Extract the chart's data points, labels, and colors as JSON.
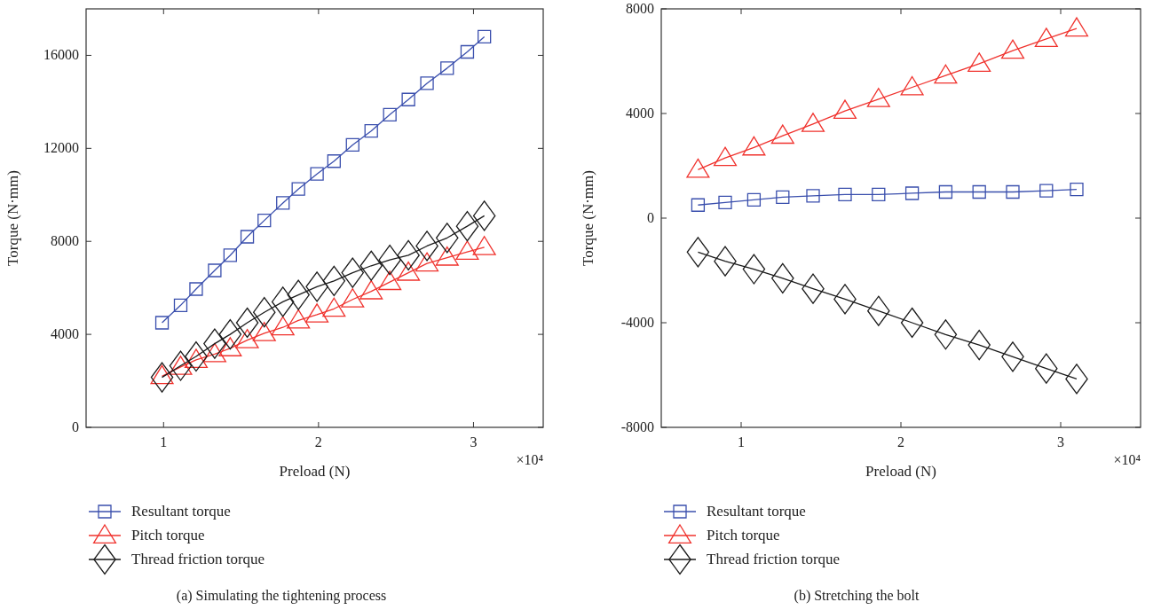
{
  "chart_data": [
    {
      "type": "line",
      "subtitle": "(a)  Simulating the tightening process",
      "xlabel": "Preload (N)",
      "ylabel": "Torque (N·mm)",
      "annotations": [
        "×10⁴"
      ],
      "xlim": [
        0.5,
        3.45
      ],
      "xticks": [
        1,
        2,
        3
      ],
      "ylim": [
        0,
        18000
      ],
      "yticks": [
        0,
        4000,
        8000,
        12000,
        16000
      ],
      "grid": false,
      "legend": "bottom",
      "line_style": "solid",
      "x": [
        0.99,
        1.11,
        1.21,
        1.33,
        1.43,
        1.54,
        1.65,
        1.77,
        1.87,
        1.99,
        2.1,
        2.22,
        2.34,
        2.46,
        2.58,
        2.7,
        2.83,
        2.96,
        3.07
      ],
      "series": [
        {
          "name": "Resultant torque",
          "color": "#3a4fad",
          "marker": "square",
          "values": [
            4500,
            5250,
            5950,
            6750,
            7400,
            8200,
            8900,
            9650,
            10250,
            10900,
            11450,
            12150,
            12750,
            13450,
            14100,
            14800,
            15450,
            16150,
            16800
          ]
        },
        {
          "name": "Pitch torque",
          "color": "#f0322d",
          "marker": "triangle",
          "values": [
            2200,
            2600,
            2900,
            3150,
            3400,
            3750,
            4050,
            4300,
            4600,
            4850,
            5100,
            5500,
            5850,
            6250,
            6650,
            7050,
            7300,
            7550,
            7750
          ]
        },
        {
          "name": "Thread friction torque",
          "color": "#1a1a1a",
          "marker": "diamond",
          "values": [
            2150,
            2650,
            3050,
            3600,
            4000,
            4500,
            4950,
            5400,
            5700,
            6050,
            6300,
            6650,
            6950,
            7200,
            7400,
            7800,
            8150,
            8650,
            9100
          ]
        }
      ]
    },
    {
      "type": "line",
      "subtitle": "(b)  Stretching the bolt",
      "xlabel": "Preload (N)",
      "ylabel": "Torque (N·mm)",
      "annotations": [
        "×10⁴"
      ],
      "xlim": [
        0.5,
        3.5
      ],
      "xticks": [
        1,
        2,
        3
      ],
      "ylim": [
        -8000,
        8000
      ],
      "yticks": [
        -8000,
        -4000,
        0,
        4000,
        8000
      ],
      "grid": false,
      "legend": "bottom",
      "line_style": "solid",
      "x": [
        0.73,
        0.9,
        1.08,
        1.26,
        1.45,
        1.65,
        1.86,
        2.07,
        2.28,
        2.49,
        2.7,
        2.91,
        3.1
      ],
      "series": [
        {
          "name": "Resultant torque",
          "color": "#3a4fad",
          "marker": "square",
          "values": [
            500,
            600,
            700,
            800,
            850,
            900,
            900,
            950,
            1000,
            1000,
            1000,
            1050,
            1100
          ]
        },
        {
          "name": "Pitch torque",
          "color": "#f0322d",
          "marker": "triangle",
          "values": [
            1850,
            2300,
            2700,
            3150,
            3600,
            4100,
            4550,
            5000,
            5450,
            5900,
            6400,
            6850,
            7250
          ]
        },
        {
          "name": "Thread friction torque",
          "color": "#1a1a1a",
          "marker": "diamond",
          "values": [
            -1300,
            -1650,
            -1950,
            -2300,
            -2700,
            -3100,
            -3550,
            -4000,
            -4450,
            -4850,
            -5300,
            -5750,
            -6150
          ]
        }
      ]
    }
  ]
}
